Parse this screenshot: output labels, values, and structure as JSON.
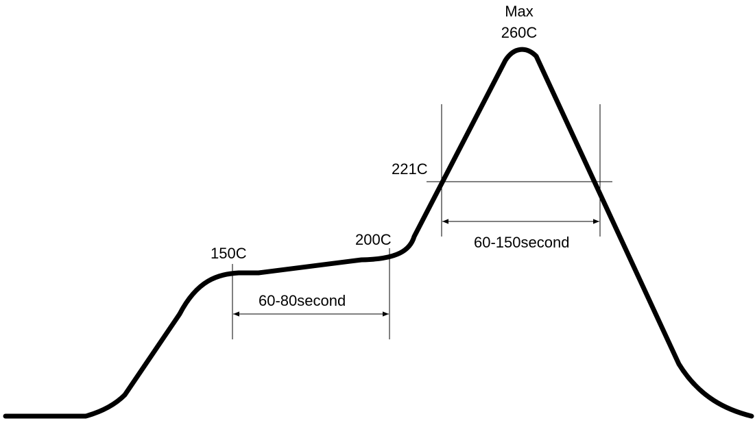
{
  "labels": {
    "peak_line1": "Max",
    "peak_line2": "260C",
    "liquidus": "221C",
    "soak_start": "150C",
    "soak_end": "200C",
    "soak_duration": "60-80second",
    "reflow_duration": "60-150second"
  },
  "colors": {
    "curve": "#000000",
    "guides": "#000000",
    "text": "#000000",
    "background": "#ffffff"
  }
}
